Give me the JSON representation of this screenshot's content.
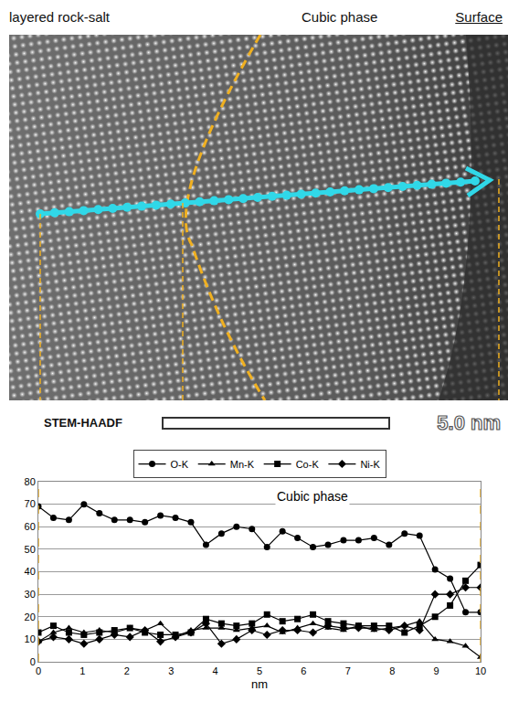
{
  "image_labels": {
    "left": "layered rock-salt",
    "middle": "Cubic phase",
    "right": "Surface",
    "method": "STEM-HAADF",
    "scale_bar": "5.0 nm"
  },
  "chart_data": {
    "type": "line",
    "x": [
      0,
      0.34,
      0.69,
      1.03,
      1.38,
      1.72,
      2.07,
      2.41,
      2.76,
      3.1,
      3.45,
      3.79,
      4.14,
      4.48,
      4.83,
      5.17,
      5.52,
      5.86,
      6.21,
      6.55,
      6.9,
      7.24,
      7.59,
      7.93,
      8.28,
      8.62,
      8.97,
      9.31,
      9.66,
      10
    ],
    "series": [
      {
        "name": "O-K",
        "color": "#000000",
        "marker": "circle",
        "values": [
          69,
          64,
          63,
          70,
          66,
          63,
          63,
          62,
          65,
          64,
          62,
          52,
          57,
          60,
          59,
          51,
          58,
          55,
          51,
          52,
          54,
          54,
          55,
          52,
          57,
          56,
          41,
          37,
          22,
          22
        ]
      },
      {
        "name": "Mn-K",
        "color": "#000000",
        "marker": "triangle-up",
        "values": [
          9,
          13,
          15,
          13,
          14,
          13,
          15,
          14,
          17,
          11,
          14,
          15,
          15,
          14,
          15,
          16,
          13,
          15,
          17,
          15,
          14,
          16,
          14,
          15,
          16,
          18,
          10,
          9,
          7,
          2
        ]
      },
      {
        "name": "Co-K",
        "color": "#000000",
        "marker": "square",
        "values": [
          13,
          16,
          13,
          12,
          13,
          14,
          15,
          13,
          12,
          12,
          13,
          19,
          17,
          16,
          17,
          21,
          18,
          19,
          21,
          18,
          17,
          16,
          16,
          16,
          13,
          16,
          20,
          25,
          36,
          43
        ]
      },
      {
        "name": "Ni-K",
        "color": "#000000",
        "marker": "diamond",
        "values": [
          9,
          11,
          10,
          8,
          10,
          12,
          11,
          14,
          9,
          11,
          13,
          17,
          8,
          10,
          14,
          12,
          14,
          14,
          13,
          16,
          15,
          15,
          15,
          14,
          16,
          14,
          30,
          30,
          33,
          33
        ]
      }
    ],
    "x_label": "nm",
    "annotations": [
      "Cubic phase"
    ],
    "xlim": [
      0,
      10
    ],
    "xticks": [
      0,
      1,
      2,
      3,
      4,
      5,
      6,
      7,
      8,
      9,
      10
    ],
    "ylim": [
      0,
      80
    ],
    "yticks": [
      0,
      10,
      20,
      30,
      40,
      50,
      60,
      70,
      80
    ],
    "grid": true,
    "legend": "top"
  }
}
